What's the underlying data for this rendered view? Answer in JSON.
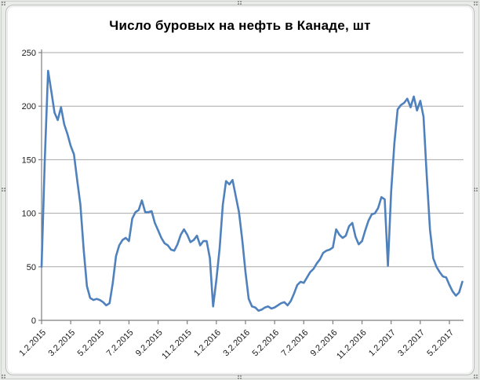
{
  "window": {
    "background_color": "#e9ebe9",
    "chart_area_color": "#ffffff"
  },
  "chart_data": {
    "type": "line",
    "title": "Число буровых на нефть в Канаде, шт",
    "legend": "none",
    "grid": "horizontal",
    "ylim": [
      0,
      250
    ],
    "ytick_step": 50,
    "ytick_labels": [
      "0",
      "50",
      "100",
      "150",
      "200",
      "250"
    ],
    "x_labels": [
      "1.2.2015",
      "3.2.2015",
      "5.2.2015",
      "7.2.2015",
      "9.2.2015",
      "11.2.2015",
      "1.2.2016",
      "3.2.2016",
      "5.2.2016",
      "7.2.2016",
      "9.2.2016",
      "11.2.2016",
      "1.2.2017",
      "3.2.2017",
      "5.2.2017"
    ],
    "label_interval": 9,
    "gridline_color": "#a8a8a8",
    "axis_color": "#7f7f7f",
    "tick_label_color": "#1a1a1a",
    "series": [
      {
        "color": "#4F81BD",
        "values": [
          50,
          150,
          233,
          214,
          194,
          187,
          199,
          183,
          174,
          163,
          155,
          131,
          108,
          66,
          32,
          21,
          19,
          20,
          19,
          17,
          14,
          16,
          35,
          60,
          70,
          75,
          77,
          74,
          95,
          101,
          103,
          112,
          101,
          101,
          102,
          91,
          84,
          77,
          72,
          70,
          66,
          65,
          71,
          80,
          85,
          80,
          73,
          75,
          79,
          70,
          74,
          74,
          58,
          13,
          38,
          67,
          108,
          130,
          127,
          131,
          116,
          101,
          75,
          45,
          20,
          13,
          12,
          9,
          10,
          12,
          13,
          11,
          12,
          14,
          16,
          17,
          14,
          18,
          25,
          33,
          36,
          35,
          40,
          45,
          48,
          53,
          57,
          63,
          65,
          66,
          68,
          85,
          80,
          77,
          79,
          88,
          91,
          78,
          71,
          74,
          84,
          93,
          99,
          100,
          105,
          115,
          113,
          51,
          120,
          165,
          197,
          201,
          203,
          207,
          199,
          209,
          196,
          205,
          190,
          135,
          85,
          58,
          50,
          45,
          41,
          40,
          33,
          27,
          23,
          26,
          36
        ]
      }
    ]
  }
}
